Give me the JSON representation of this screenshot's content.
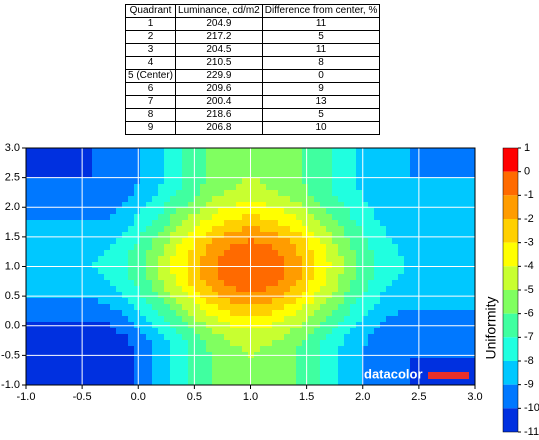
{
  "table": {
    "header": [
      "Quadrant",
      "Luminance, cd/m2",
      "Difference from center, %"
    ],
    "rows": [
      [
        "1",
        204.9,
        11
      ],
      [
        "2",
        217.2,
        5
      ],
      [
        "3",
        204.5,
        11
      ],
      [
        "4",
        210.5,
        8
      ],
      [
        "5 (Center)",
        229.9,
        0
      ],
      [
        "6",
        209.6,
        9
      ],
      [
        "7",
        200.4,
        13
      ],
      [
        "8",
        218.6,
        5
      ],
      [
        "9",
        206.8,
        10
      ]
    ]
  },
  "chart_data": {
    "type": "contour",
    "xlim": [
      -1,
      3
    ],
    "ylim": [
      -1,
      3
    ],
    "xticks": [
      {
        "value": -1,
        "label": "-1.0"
      },
      -0.5,
      {
        "value": 0,
        "label": "0.0"
      },
      0.5,
      {
        "value": 1,
        "label": "1.0"
      },
      1.5,
      {
        "value": 2,
        "label": "2.0"
      },
      2.5,
      {
        "value": 3,
        "label": "3.0"
      }
    ],
    "yticks": [
      {
        "value": 3,
        "label": "3.0"
      },
      2.5,
      {
        "value": 2,
        "label": "2.0"
      },
      1.5,
      {
        "value": 1,
        "label": "1.0"
      },
      0.5,
      {
        "value": 0,
        "label": "0.0"
      },
      -0.5,
      {
        "value": -1,
        "label": "-1.0"
      }
    ],
    "grid": true,
    "zx": [
      -0.4,
      1,
      2.4
    ],
    "zy": [
      2.5,
      1,
      -0.5
    ],
    "z": [
      [
        -10,
        -5,
        -9
      ],
      [
        -8,
        0,
        -8
      ],
      [
        -11,
        -5,
        -10
      ]
    ],
    "colorbar": {
      "label": "Uniformity",
      "lim": [
        -11,
        1
      ],
      "ticks": [
        1,
        0,
        -1,
        -2,
        -3,
        -4,
        -5,
        -6,
        -7,
        -8,
        -9,
        -10,
        -11
      ],
      "colors": [
        "#ff0000",
        "#ff6a00",
        "#ff9c00",
        "#ffd000",
        "#ffff00",
        "#c8ff30",
        "#80ff60",
        "#40ffa0",
        "#20ffe0",
        "#00c8ff",
        "#0078ff",
        "#0030e0"
      ]
    },
    "logo": "datacolor"
  }
}
